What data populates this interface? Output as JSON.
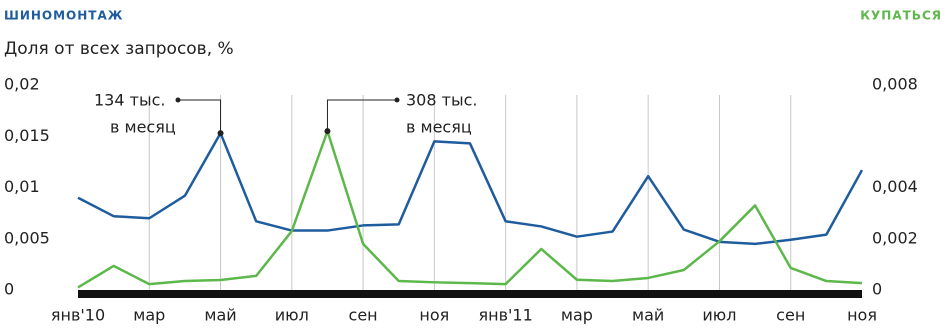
{
  "chart_data": {
    "type": "line",
    "subtitle": "Доля от всех запросов, %",
    "categories": [
      "янв'10",
      null,
      "мар",
      null,
      "май",
      null,
      "июл",
      null,
      "сен",
      null,
      "ноя",
      null,
      "янв'11",
      null,
      "мар",
      null,
      "май",
      null,
      "июл",
      null,
      "сен",
      null,
      "ноя"
    ],
    "series": [
      {
        "name": "ШИНОМОНТАЖ",
        "color": "#1f5c9e",
        "axis": "y",
        "values": [
          0.009,
          0.0072,
          0.007,
          0.0092,
          0.0153,
          0.0067,
          0.0058,
          0.0058,
          0.0063,
          0.0064,
          0.0145,
          0.0143,
          0.0067,
          0.0062,
          0.0052,
          0.0057,
          0.0111,
          0.0059,
          0.0047,
          0.0045,
          0.0049,
          0.0054,
          0.0117
        ]
      },
      {
        "name": "КУПАТЬСЯ",
        "color": "#5cb84a",
        "axis": "y2",
        "values": [
          0.0001,
          0.00094,
          0.00023,
          0.00035,
          0.00039,
          0.00055,
          0.0023,
          0.0062,
          0.0018,
          0.00035,
          0.0003,
          0.00027,
          0.00023,
          0.0016,
          0.0004,
          0.00035,
          0.00047,
          0.00078,
          0.0019,
          0.0033,
          0.00086,
          0.00035,
          0.00027
        ]
      }
    ],
    "ylim": [
      0,
      0.02
    ],
    "yticks": [
      0,
      {
        "value": 0.005,
        "label": "0,005"
      },
      {
        "value": 0.01,
        "label": "0,01"
      },
      {
        "value": 0.015,
        "label": "0,015"
      },
      {
        "value": 0.02,
        "label": "0,02"
      }
    ],
    "y2lim": [
      0,
      0.008
    ],
    "y2ticks": [
      0,
      {
        "value": 0.002,
        "label": "0,002"
      },
      {
        "value": 0.004,
        "label": "0,004"
      },
      {
        "value": 0.008,
        "label": "0,008"
      }
    ],
    "annotations": [
      {
        "lines": [
          "134 тыс.",
          "в месяц"
        ]
      },
      {
        "lines": [
          "308 тыс.",
          "в месяц"
        ]
      }
    ]
  }
}
